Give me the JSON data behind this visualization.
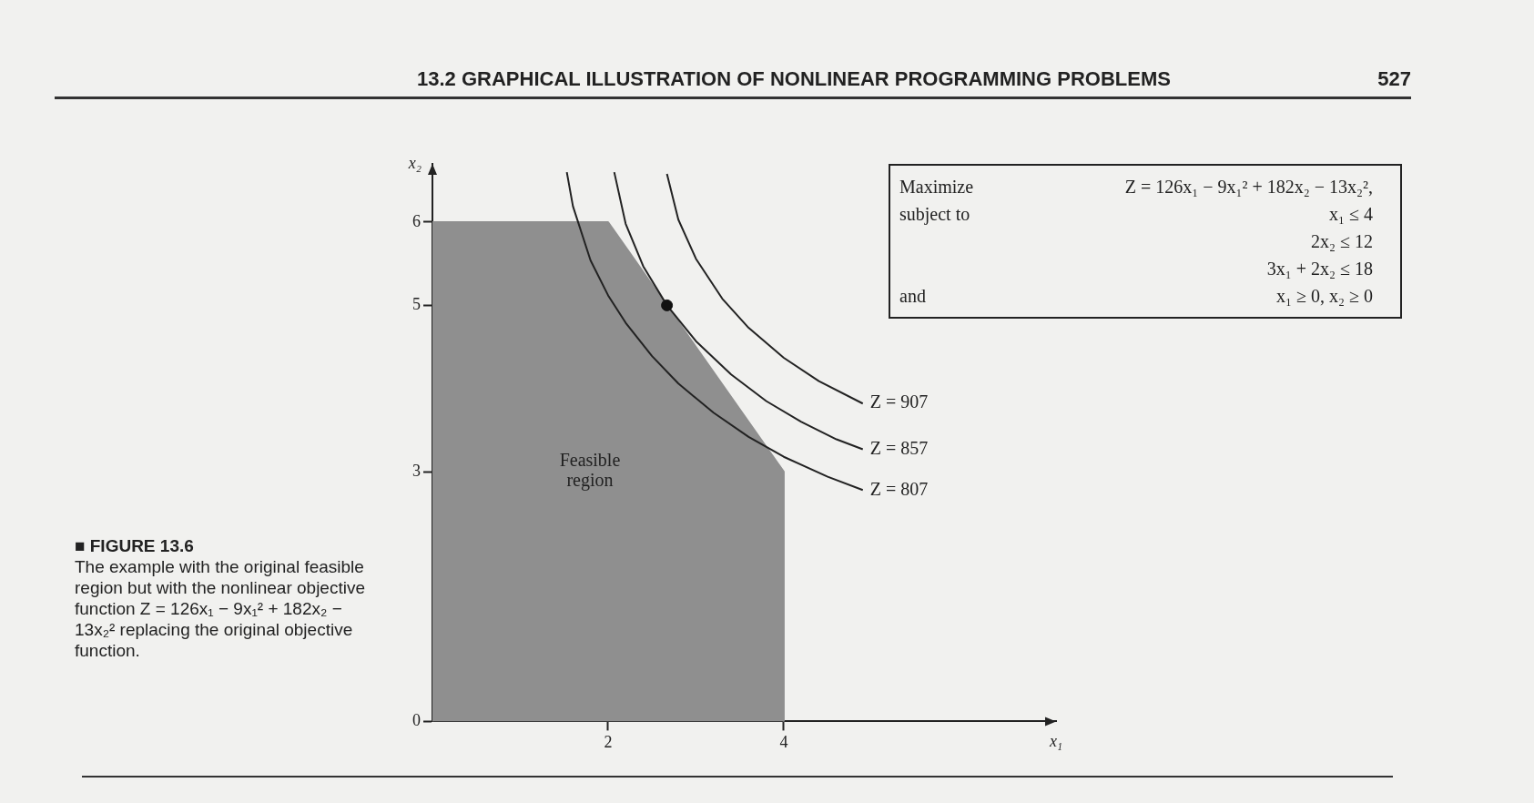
{
  "chart_data": {
    "type": "line",
    "title": "13.2 GRAPHICAL ILLUSTRATION OF NONLINEAR PROGRAMMING PROBLEMS",
    "xlabel": "x₁",
    "ylabel": "x₂",
    "xlim": [
      0,
      7.1
    ],
    "ylim": [
      0,
      6.7
    ],
    "xticks": [
      2,
      4
    ],
    "yticks": [
      0,
      3,
      5,
      6
    ],
    "grid": false,
    "legend": false,
    "series": [
      {
        "type": "area",
        "color": "#8f8f8f",
        "x": [
          0,
          0,
          2,
          4,
          4
        ],
        "values": [
          0,
          6,
          6,
          3,
          0
        ]
      },
      {
        "color": "#222222",
        "x": [
          1.53,
          1.6,
          1.8,
          2.0,
          2.2,
          2.5,
          2.8,
          3.2,
          3.6,
          4.0,
          4.5,
          4.9
        ],
        "values": [
          6.6,
          6.19,
          5.54,
          5.12,
          4.79,
          4.39,
          4.06,
          3.71,
          3.42,
          3.18,
          2.94,
          2.78
        ]
      },
      {
        "color": "#222222",
        "x": [
          2.07,
          2.2,
          2.4,
          2.67,
          3.0,
          3.4,
          3.8,
          4.2,
          4.6,
          4.9
        ],
        "values": [
          6.6,
          5.98,
          5.47,
          5.0,
          4.57,
          4.17,
          3.85,
          3.6,
          3.39,
          3.27
        ]
      },
      {
        "color": "#222222",
        "x": [
          2.67,
          2.8,
          3.0,
          3.3,
          3.6,
          4.0,
          4.4,
          4.9
        ],
        "values": [
          6.58,
          6.03,
          5.56,
          5.08,
          4.73,
          4.37,
          4.09,
          3.82
        ]
      },
      {
        "type": "scatter",
        "color": "#111111",
        "marker": "circle",
        "x": [
          2.67
        ],
        "values": [
          5
        ]
      }
    ],
    "annotations": [
      "Z = 907",
      "Z = 857",
      "Z = 807",
      "Feasible\nregion",
      "527",
      "■ FIGURE 13.6",
      "The example with the original feasible region but with the nonlinear objective function Z = 126x₁ − 9x₁² + 182x₂ − 13x₂² replacing the original objective function.",
      "Maximize\tZ = 126x₁ − 9x₁² + 182x₂ − 13x₂²,",
      "subject to\tx₁ ≤ 4",
      "\t2x₂ ≤ 12",
      "\t3x₁ + 2x₂ ≤ 18",
      "and\tx₁ ≥ 0,   x₂ ≥ 0"
    ]
  }
}
